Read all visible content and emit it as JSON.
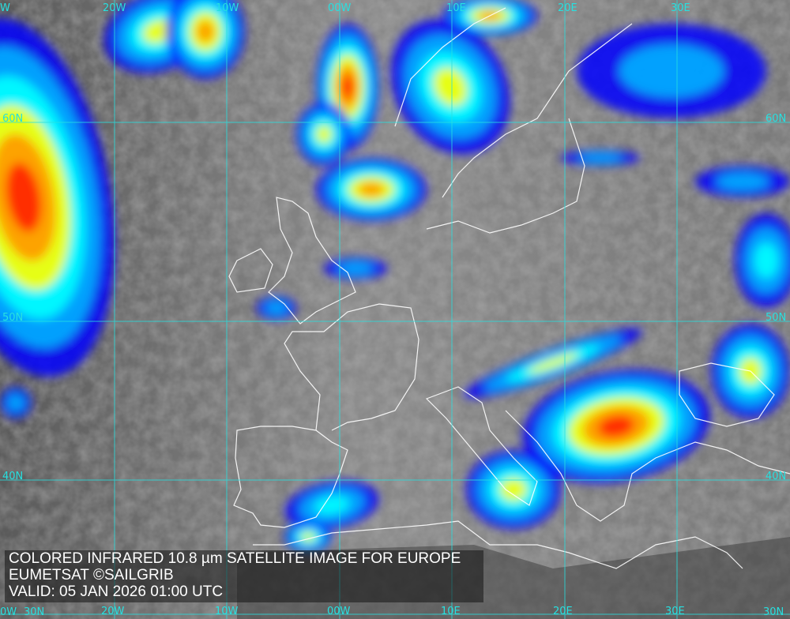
{
  "map": {
    "title_lines": [
      "COLORED INFRARED 10.8 µm SATELLITE IMAGE FOR EUROPE",
      "EUMETSAT ©SAILGRIB",
      "VALID:  05 JAN 2026 01:00 UTC"
    ],
    "longitude_labels_top": [
      "W",
      "20W",
      "10W",
      "00W",
      "10E",
      "20E",
      "30E"
    ],
    "longitude_labels_bottom": [
      "0W",
      "20W",
      "10W",
      "00W",
      "10E",
      "20E",
      "30E"
    ],
    "latitude_labels_left": [
      "60N",
      "50N",
      "40N",
      "30N"
    ],
    "latitude_labels_right": [
      "60N",
      "50N",
      "40N",
      "30N"
    ],
    "colors": {
      "grid": "#27e0e0",
      "coastline": "#ffffff",
      "cloud_scale": [
        "#0000ff",
        "#00b0ff",
        "#00ffff",
        "#ffff00",
        "#ff9900",
        "#ff2000"
      ]
    }
  }
}
